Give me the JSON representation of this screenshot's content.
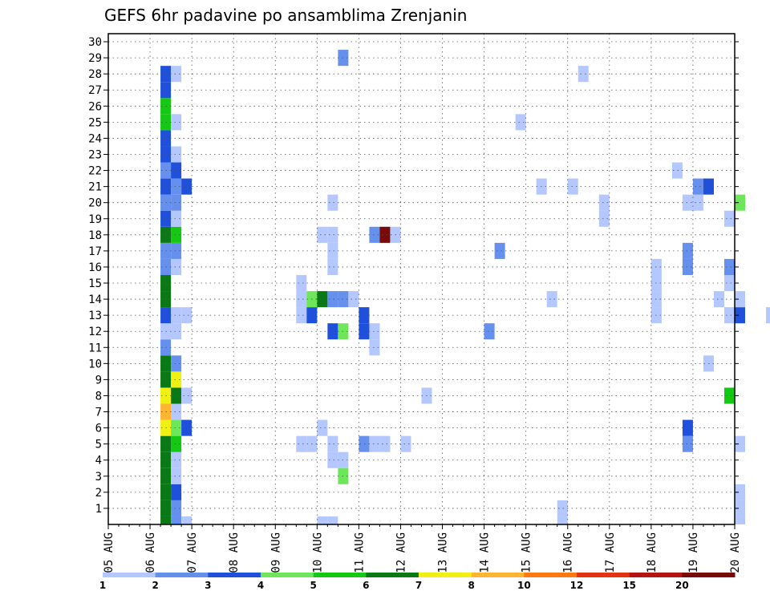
{
  "chart_data": {
    "type": "heatmap",
    "title": "GEFS 6hr padavine po ansamblima Zrenjanin",
    "x_tick_labels": [
      "05 AUG",
      "06 AUG",
      "07 AUG",
      "08 AUG",
      "09 AUG",
      "10 AUG",
      "11 AUG",
      "12 AUG",
      "13 AUG",
      "14 AUG",
      "15 AUG",
      "16 AUG",
      "17 AUG",
      "18 AUG",
      "19 AUG",
      "20 AUG"
    ],
    "x_range_days": [
      0,
      15
    ],
    "steps_per_day": 4,
    "members": [
      1,
      2,
      3,
      4,
      5,
      6,
      7,
      8,
      9,
      10,
      11,
      12,
      13,
      14,
      15,
      16,
      17,
      18,
      19,
      20,
      21,
      22,
      23,
      24,
      25,
      26,
      27,
      28,
      29,
      30
    ],
    "grid": "dotted",
    "levels": [
      "1",
      "2",
      "3",
      "4",
      "5",
      "6",
      "7",
      "8",
      "10",
      "12",
      "15",
      "20"
    ],
    "level_colors": [
      "#b4c8ff",
      "#6690ee",
      "#1e50dc",
      "#6ee65a",
      "#14c814",
      "#0a7814",
      "#f0f014",
      "#ffb432",
      "#ff7814",
      "#e63214",
      "#b41414",
      "#780a0a"
    ],
    "cells": [
      [
        1,
        0,
        2,
        6
      ],
      [
        1,
        1,
        2,
        6
      ],
      [
        1,
        2,
        2,
        6
      ],
      [
        1,
        3,
        2,
        6
      ],
      [
        1,
        4,
        2,
        6
      ],
      [
        1,
        5,
        2,
        6
      ],
      [
        1,
        6,
        2,
        7
      ],
      [
        1,
        7,
        2,
        8
      ],
      [
        1,
        8,
        2,
        7
      ],
      [
        1,
        9,
        2,
        6
      ],
      [
        1,
        10,
        2,
        6
      ],
      [
        1,
        11,
        2,
        2
      ],
      [
        1,
        12,
        2,
        1
      ],
      [
        1,
        13,
        2,
        3
      ],
      [
        1,
        14,
        2,
        6
      ],
      [
        1,
        15,
        2,
        6
      ],
      [
        1,
        16,
        2,
        2
      ],
      [
        1,
        17,
        2,
        2
      ],
      [
        1,
        18,
        2,
        6
      ],
      [
        1,
        19,
        2,
        3
      ],
      [
        1,
        20,
        2,
        2
      ],
      [
        1,
        21,
        2,
        3
      ],
      [
        1,
        22,
        2,
        2
      ],
      [
        1,
        23,
        2,
        3
      ],
      [
        1,
        24,
        2,
        3
      ],
      [
        1,
        25,
        2,
        5
      ],
      [
        1,
        26,
        2,
        5
      ],
      [
        1,
        27,
        2,
        3
      ],
      [
        1,
        28,
        2,
        3
      ],
      [
        1,
        0,
        3,
        2
      ],
      [
        1,
        1,
        3,
        2
      ],
      [
        1,
        2,
        3,
        3
      ],
      [
        1,
        3,
        3,
        1
      ],
      [
        1,
        4,
        3,
        1
      ],
      [
        1,
        5,
        3,
        5
      ],
      [
        1,
        6,
        3,
        4
      ],
      [
        1,
        7,
        3,
        1
      ],
      [
        1,
        8,
        3,
        6
      ],
      [
        1,
        9,
        3,
        7
      ],
      [
        1,
        10,
        3,
        2
      ],
      [
        1,
        12,
        3,
        1
      ],
      [
        1,
        13,
        3,
        1
      ],
      [
        1,
        16,
        3,
        1
      ],
      [
        1,
        17,
        3,
        2
      ],
      [
        1,
        18,
        3,
        5
      ],
      [
        1,
        19,
        3,
        1
      ],
      [
        1,
        20,
        3,
        2
      ],
      [
        1,
        21,
        3,
        2
      ],
      [
        1,
        22,
        3,
        3
      ],
      [
        1,
        23,
        3,
        1
      ],
      [
        1,
        25,
        3,
        1
      ],
      [
        1,
        28,
        3,
        1
      ],
      [
        1,
        0,
        4,
        1
      ],
      [
        1,
        6,
        4,
        3
      ],
      [
        1,
        8,
        4,
        1
      ],
      [
        1,
        13,
        4,
        1
      ],
      [
        1,
        21,
        4,
        3
      ],
      [
        4,
        5,
        3,
        1
      ],
      [
        4,
        5,
        4,
        1
      ],
      [
        4,
        13,
        3,
        1
      ],
      [
        4,
        14,
        3,
        1
      ],
      [
        4,
        15,
        3,
        1
      ],
      [
        4,
        13,
        4,
        3
      ],
      [
        4,
        14,
        4,
        4
      ],
      [
        5,
        18,
        1,
        1
      ],
      [
        5,
        -1,
        1,
        1
      ],
      [
        5,
        -1,
        2,
        1
      ],
      [
        5,
        4,
        2,
        1
      ],
      [
        5,
        4,
        3,
        1
      ],
      [
        5,
        6,
        1,
        1
      ],
      [
        5,
        12,
        2,
        3
      ],
      [
        5,
        12,
        3,
        4
      ],
      [
        5,
        14,
        1,
        6
      ],
      [
        5,
        14,
        2,
        2
      ],
      [
        5,
        14,
        3,
        2
      ],
      [
        5,
        14,
        4,
        1
      ],
      [
        5,
        16,
        2,
        1
      ],
      [
        5,
        17,
        2,
        1
      ],
      [
        5,
        18,
        2,
        1
      ],
      [
        5,
        20,
        2,
        1
      ],
      [
        5,
        3,
        3,
        4
      ],
      [
        5,
        5,
        2,
        1
      ],
      [
        5,
        29,
        3,
        2
      ],
      [
        6,
        5,
        1,
        2
      ],
      [
        6,
        12,
        2,
        1
      ],
      [
        6,
        18,
        2,
        2
      ],
      [
        6,
        18,
        3,
        12
      ],
      [
        6,
        18,
        4,
        1
      ],
      [
        6,
        12,
        1,
        3
      ],
      [
        6,
        13,
        1,
        3
      ],
      [
        6,
        11,
        2,
        1
      ],
      [
        6,
        5,
        2,
        1
      ],
      [
        6,
        5,
        3,
        1
      ],
      [
        7,
        5,
        1,
        1
      ],
      [
        7,
        8,
        3,
        1
      ],
      [
        9,
        17,
        2,
        2
      ],
      [
        9,
        25,
        4,
        1
      ],
      [
        9,
        12,
        1,
        2
      ],
      [
        10,
        1,
        4,
        1
      ],
      [
        10,
        0,
        4,
        1
      ],
      [
        10,
        14,
        3,
        1
      ],
      [
        10,
        21,
        2,
        1
      ],
      [
        11,
        19,
        4,
        1
      ],
      [
        11,
        28,
        2,
        1
      ],
      [
        11,
        20,
        4,
        1
      ],
      [
        11,
        21,
        1,
        1
      ],
      [
        13,
        13,
        1,
        1
      ],
      [
        13,
        14,
        1,
        1
      ],
      [
        13,
        15,
        1,
        1
      ],
      [
        13,
        16,
        1,
        1
      ],
      [
        13,
        5,
        4,
        2
      ],
      [
        13,
        6,
        4,
        3
      ],
      [
        13,
        16,
        4,
        2
      ],
      [
        13,
        17,
        4,
        2
      ],
      [
        13,
        20,
        4,
        1
      ],
      [
        13,
        22,
        3,
        1
      ],
      [
        14,
        8,
        4,
        5
      ],
      [
        14,
        20,
        1,
        1
      ],
      [
        14,
        21,
        1,
        2
      ],
      [
        14,
        21,
        2,
        3
      ],
      [
        14,
        13,
        4,
        1
      ],
      [
        14,
        14,
        3,
        1
      ],
      [
        14,
        15,
        4,
        1
      ],
      [
        14,
        16,
        4,
        2
      ],
      [
        14,
        19,
        4,
        1
      ],
      [
        14,
        10,
        2,
        1
      ],
      [
        15,
        0,
        1,
        1
      ],
      [
        15,
        1,
        1,
        1
      ],
      [
        15,
        2,
        1,
        1
      ],
      [
        15,
        13,
        4,
        1
      ],
      [
        15,
        5,
        1,
        1
      ],
      [
        15,
        13,
        1,
        3
      ],
      [
        15,
        14,
        1,
        1
      ],
      [
        15,
        20,
        1,
        4
      ],
      [
        16,
        3,
        1,
        1
      ],
      [
        16,
        9,
        4,
        1
      ],
      [
        16,
        21,
        1,
        1
      ],
      [
        16,
        21,
        2,
        1
      ],
      [
        17,
        12,
        1,
        1
      ],
      [
        17,
        20,
        3,
        1
      ],
      [
        17,
        20,
        4,
        1
      ],
      [
        17,
        21,
        2,
        3
      ],
      [
        17,
        14,
        4,
        1
      ],
      [
        17,
        13,
        1,
        2
      ],
      [
        17,
        5,
        1,
        1
      ],
      [
        18,
        2,
        3,
        2
      ],
      [
        18,
        3,
        4,
        1
      ],
      [
        18,
        10,
        1,
        1
      ],
      [
        18,
        17,
        4,
        1
      ],
      [
        18,
        18,
        1,
        1
      ],
      [
        18,
        20,
        1,
        4
      ],
      [
        18,
        21,
        1,
        2
      ],
      [
        18,
        21,
        2,
        3
      ],
      [
        18,
        21,
        3,
        1
      ],
      [
        18,
        14,
        4,
        3
      ],
      [
        18,
        16,
        4,
        1
      ],
      [
        18,
        17,
        1,
        1
      ],
      [
        18,
        7,
        4,
        1
      ],
      [
        19,
        5,
        4,
        3
      ],
      [
        19,
        8,
        3,
        1
      ],
      [
        19,
        9,
        3,
        1
      ],
      [
        19,
        10,
        4,
        1
      ],
      [
        19,
        13,
        4,
        1
      ],
      [
        19,
        20,
        1,
        1
      ],
      [
        19,
        21,
        2,
        8
      ],
      [
        19,
        21,
        3,
        10
      ],
      [
        19,
        21,
        4,
        1
      ],
      [
        19,
        19,
        3,
        1
      ],
      [
        19,
        14,
        3,
        1
      ],
      [
        20,
        5,
        4,
        1
      ],
      [
        20,
        6,
        3,
        1
      ],
      [
        20,
        14,
        4,
        3
      ],
      [
        20,
        20,
        3,
        1
      ],
      [
        20,
        21,
        1,
        1
      ],
      [
        20,
        21,
        2,
        3
      ],
      [
        20,
        15,
        4,
        1
      ],
      [
        20,
        22,
        4,
        1
      ],
      [
        20,
        15,
        1,
        1
      ],
      [
        20,
        15,
        2,
        1
      ],
      [
        20,
        15,
        3,
        1
      ],
      [
        20,
        14,
        2,
        2
      ],
      [
        20,
        6,
        1,
        1
      ]
    ]
  }
}
